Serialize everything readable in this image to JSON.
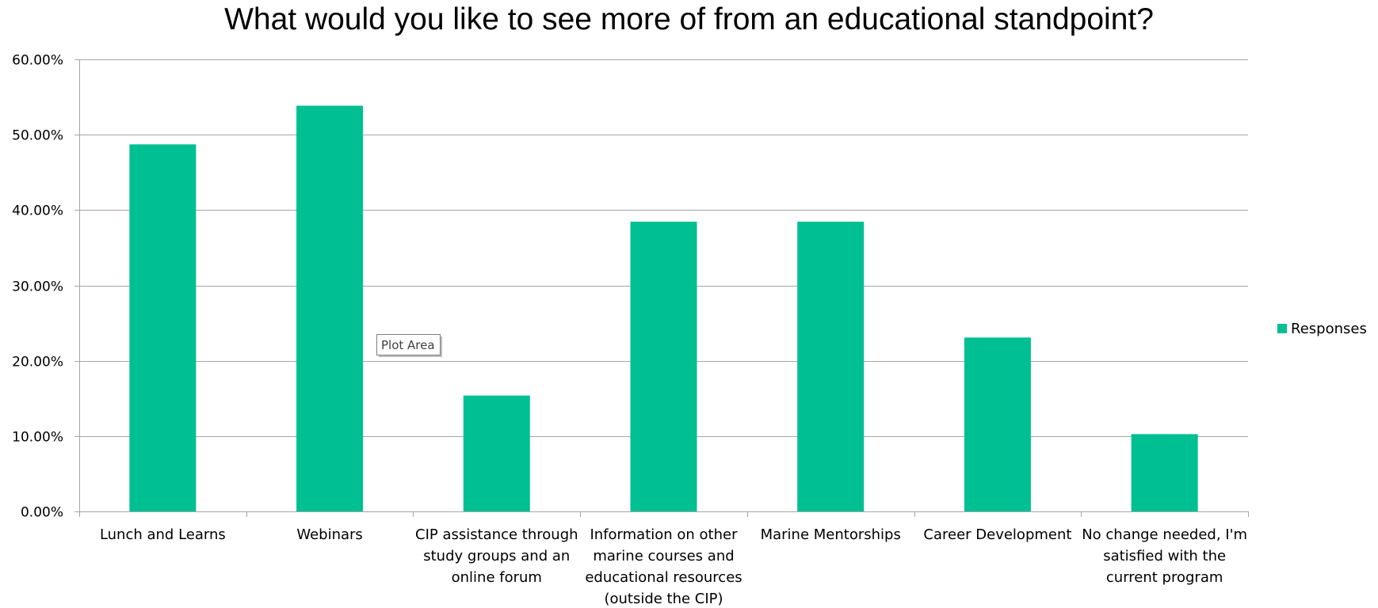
{
  "chart_data": {
    "type": "bar",
    "title": "What would you like to see more of from an educational standpoint?",
    "categories": [
      "Lunch and Learns",
      "Webinars",
      "CIP assistance through study groups and an online forum",
      "Information on other marine courses and educational resources (outside the CIP)",
      "Marine Mentorships",
      "Career Development",
      "No change needed, I'm satisfied with the current program"
    ],
    "category_lines": [
      [
        "Lunch and Learns"
      ],
      [
        "Webinars"
      ],
      [
        "CIP assistance through",
        "study groups and an",
        "online forum"
      ],
      [
        "Information on other",
        "marine courses and",
        "educational resources",
        "(outside the CIP)"
      ],
      [
        "Marine Mentorships"
      ],
      [
        "Career Development"
      ],
      [
        "No change needed, I'm",
        "satisfied with the",
        "current program"
      ]
    ],
    "series": [
      {
        "name": "Responses",
        "color": "#00BF93",
        "values": [
          48.72,
          53.85,
          15.38,
          38.46,
          38.46,
          23.08,
          10.26
        ]
      }
    ],
    "yticks": [
      "0.00%",
      "10.00%",
      "20.00%",
      "30.00%",
      "40.00%",
      "50.00%",
      "60.00%"
    ],
    "ylim": [
      0,
      60
    ],
    "xlabel": "",
    "ylabel": "",
    "grid": true,
    "legend_position": "right"
  },
  "tooltip": {
    "label": "Plot Area"
  }
}
